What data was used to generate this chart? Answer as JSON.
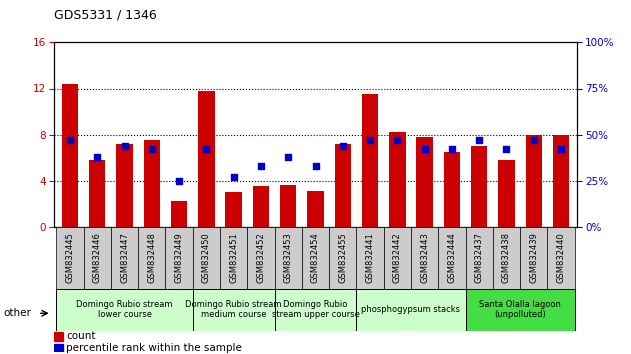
{
  "title": "GDS5331 / 1346",
  "samples": [
    "GSM832445",
    "GSM832446",
    "GSM832447",
    "GSM832448",
    "GSM832449",
    "GSM832450",
    "GSM832451",
    "GSM832452",
    "GSM832453",
    "GSM832454",
    "GSM832455",
    "GSM832441",
    "GSM832442",
    "GSM832443",
    "GSM832444",
    "GSM832437",
    "GSM832438",
    "GSM832439",
    "GSM832440"
  ],
  "count": [
    12.4,
    5.8,
    7.2,
    7.5,
    2.2,
    11.8,
    3.0,
    3.5,
    3.6,
    3.1,
    7.2,
    11.5,
    8.2,
    7.8,
    6.5,
    7.0,
    5.8,
    8.0,
    8.0
  ],
  "percentile": [
    47,
    38,
    44,
    42,
    25,
    42,
    27,
    33,
    38,
    33,
    44,
    47,
    47,
    42,
    42,
    47,
    42,
    47,
    42
  ],
  "left_ylim": [
    0,
    16
  ],
  "right_ylim": [
    0,
    100
  ],
  "left_yticks": [
    0,
    4,
    8,
    12,
    16
  ],
  "right_yticks": [
    0,
    25,
    50,
    75,
    100
  ],
  "groups": [
    {
      "label": "Domingo Rubio stream\nlower course",
      "start": 0,
      "end": 4,
      "color": "#ccffcc"
    },
    {
      "label": "Domingo Rubio stream\nmedium course",
      "start": 5,
      "end": 7,
      "color": "#ccffcc"
    },
    {
      "label": "Domingo Rubio\nstream upper course",
      "start": 8,
      "end": 10,
      "color": "#ccffcc"
    },
    {
      "label": "phosphogypsum stacks",
      "start": 11,
      "end": 14,
      "color": "#ccffcc"
    },
    {
      "label": "Santa Olalla lagoon\n(unpolluted)",
      "start": 15,
      "end": 18,
      "color": "#44dd44"
    }
  ],
  "bar_color": "#cc0000",
  "pct_color": "#0000cc",
  "bar_width": 0.6,
  "left_tick_color": "#cc0000",
  "right_tick_color": "#0000cc",
  "xtick_bg": "#cccccc",
  "plot_bg": "#ffffff",
  "fig_bg": "#ffffff"
}
